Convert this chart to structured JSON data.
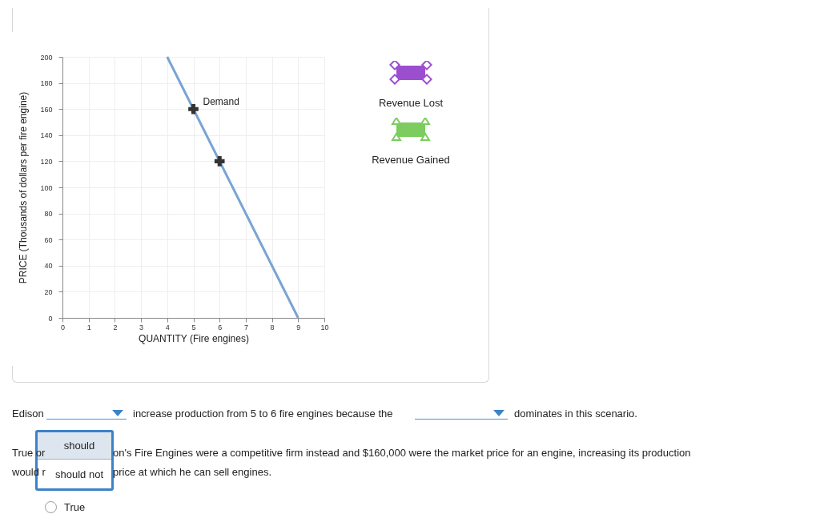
{
  "chart_data": {
    "type": "line",
    "xlabel": "QUANTITY (Fire engines)",
    "ylabel": "PRICE (Thousands of dollars per fire engine)",
    "xlim": [
      0,
      10
    ],
    "xticks": [
      0,
      1,
      2,
      3,
      4,
      5,
      6,
      7,
      8,
      9,
      10
    ],
    "ylim": [
      0,
      200
    ],
    "yticks": [
      0,
      20,
      40,
      60,
      80,
      100,
      120,
      140,
      160,
      180,
      200
    ],
    "grid": true,
    "series": [
      {
        "type": "line",
        "color": "#79a4d4",
        "x": [
          4,
          9
        ],
        "values": [
          200,
          0
        ]
      },
      {
        "type": "scatter",
        "marker": "cross",
        "color": "#333333",
        "x": [
          5,
          6
        ],
        "values": [
          160,
          120
        ]
      }
    ],
    "annotations": [
      {
        "text": "Demand",
        "x": 5,
        "y": 160
      },
      "Revenue Lost",
      "Revenue Gained",
      "Edison",
      "increase production from 5 to 6 fire engines because the",
      "dominates in this scenario.",
      "True or",
      "on's Fire Engines were a competitive firm instead and $160,000 were the market price for an engine, increasing its production",
      "would r",
      "price at which he can sell engines.",
      "should",
      "should not",
      "True"
    ]
  }
}
